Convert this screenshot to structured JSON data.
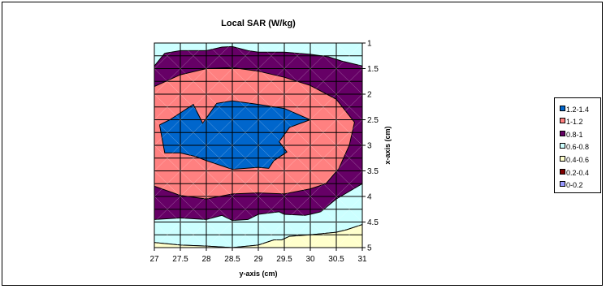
{
  "chart_data": {
    "type": "contour",
    "title": "Local SAR (W/kg)",
    "xlabel": "y-axis (cm)",
    "ylabel": "x-axis (cm)",
    "x_ticks": [
      "27",
      "27.5",
      "28",
      "28.5",
      "29",
      "29.5",
      "30",
      "30.5",
      "31"
    ],
    "y_ticks": [
      "1",
      "1.5",
      "2",
      "2.5",
      "3",
      "3.5",
      "4",
      "4.5",
      "5"
    ],
    "xlim": [
      27,
      31
    ],
    "ylim": [
      1,
      5
    ],
    "y_axis_position": "right",
    "y_axis_reversed": true,
    "grid": true,
    "legend_position": "right",
    "levels": [
      {
        "range": "1.2-1.4",
        "color": "#0066cc"
      },
      {
        "range": "1-1.2",
        "color": "#ff8080"
      },
      {
        "range": "0.8-1",
        "color": "#660066"
      },
      {
        "range": "0.6-0.8",
        "color": "#ccffff"
      },
      {
        "range": "0.4-0.6",
        "color": "#ffffcc"
      },
      {
        "range": "0.2-0.4",
        "color": "#800000"
      },
      {
        "range": "0-0.2",
        "color": "#9999ff"
      }
    ],
    "regions": [
      {
        "level": "0.6-0.8",
        "outline": [
          [
            27,
            1
          ],
          [
            31,
            1
          ],
          [
            31,
            4.55
          ],
          [
            30.7,
            4.65
          ],
          [
            30.5,
            4.7
          ],
          [
            30,
            4.75
          ],
          [
            29.6,
            4.78
          ],
          [
            29.45,
            4.85
          ],
          [
            29.3,
            4.85
          ],
          [
            29,
            4.95
          ],
          [
            28.5,
            5
          ],
          [
            28,
            4.97
          ],
          [
            27.5,
            4.95
          ],
          [
            27,
            4.9
          ]
        ]
      },
      {
        "level": "0.4-0.6",
        "outline": [
          [
            27,
            4.9
          ],
          [
            27.5,
            4.95
          ],
          [
            28,
            4.97
          ],
          [
            28.5,
            5
          ],
          [
            29,
            4.95
          ],
          [
            29.3,
            4.85
          ],
          [
            29.45,
            4.85
          ],
          [
            29.6,
            4.78
          ],
          [
            30,
            4.75
          ],
          [
            30.5,
            4.7
          ],
          [
            30.7,
            4.65
          ],
          [
            31,
            4.55
          ],
          [
            31,
            5
          ],
          [
            27,
            5
          ]
        ]
      },
      {
        "level": "0.8-1",
        "outline": [
          [
            27,
            1.45
          ],
          [
            27.2,
            1.2
          ],
          [
            27.5,
            1.15
          ],
          [
            28,
            1.15
          ],
          [
            28.3,
            1.08
          ],
          [
            28.5,
            1.07
          ],
          [
            28.8,
            1.15
          ],
          [
            29,
            1.18
          ],
          [
            29.5,
            1.18
          ],
          [
            30,
            1.22
          ],
          [
            30.35,
            1.27
          ],
          [
            30.6,
            1.35
          ],
          [
            31,
            1.45
          ],
          [
            31,
            3.75
          ],
          [
            30.5,
            4.05
          ],
          [
            30.2,
            4.3
          ],
          [
            30,
            4.35
          ],
          [
            29.9,
            4.37
          ],
          [
            29.5,
            4.35
          ],
          [
            29.4,
            4.3
          ],
          [
            29,
            4.35
          ],
          [
            28.8,
            4.45
          ],
          [
            28.5,
            4.47
          ],
          [
            28.3,
            4.37
          ],
          [
            28,
            4.45
          ],
          [
            27.5,
            4.42
          ],
          [
            27,
            4.45
          ]
        ]
      },
      {
        "level": "1-1.2",
        "outline": [
          [
            27,
            1.85
          ],
          [
            27.5,
            1.62
          ],
          [
            28,
            1.5
          ],
          [
            28.5,
            1.48
          ],
          [
            29,
            1.55
          ],
          [
            29.5,
            1.67
          ],
          [
            30,
            1.83
          ],
          [
            30.5,
            2.1
          ],
          [
            30.85,
            2.55
          ],
          [
            30.75,
            3
          ],
          [
            30.55,
            3.45
          ],
          [
            30.3,
            3.75
          ],
          [
            30,
            3.85
          ],
          [
            29.5,
            3.95
          ],
          [
            29,
            3.93
          ],
          [
            28.5,
            3.95
          ],
          [
            28,
            4.05
          ],
          [
            27.5,
            3.98
          ],
          [
            27,
            3.8
          ]
        ]
      },
      {
        "level": "1.2-1.4",
        "outline": [
          [
            27.1,
            2.6
          ],
          [
            27.3,
            2.5
          ],
          [
            27.75,
            2.2
          ],
          [
            27.93,
            2.57
          ],
          [
            28.2,
            2.18
          ],
          [
            28.5,
            2.13
          ],
          [
            29,
            2.2
          ],
          [
            29.5,
            2.28
          ],
          [
            30,
            2.5
          ],
          [
            29.6,
            2.65
          ],
          [
            29.4,
            2.93
          ],
          [
            29.55,
            3.13
          ],
          [
            29.3,
            3.3
          ],
          [
            29.2,
            3.45
          ],
          [
            29,
            3.43
          ],
          [
            28.5,
            3.47
          ],
          [
            28,
            3.3
          ],
          [
            27.8,
            3.22
          ],
          [
            27.5,
            3.15
          ],
          [
            27.2,
            3.15
          ]
        ]
      }
    ]
  }
}
